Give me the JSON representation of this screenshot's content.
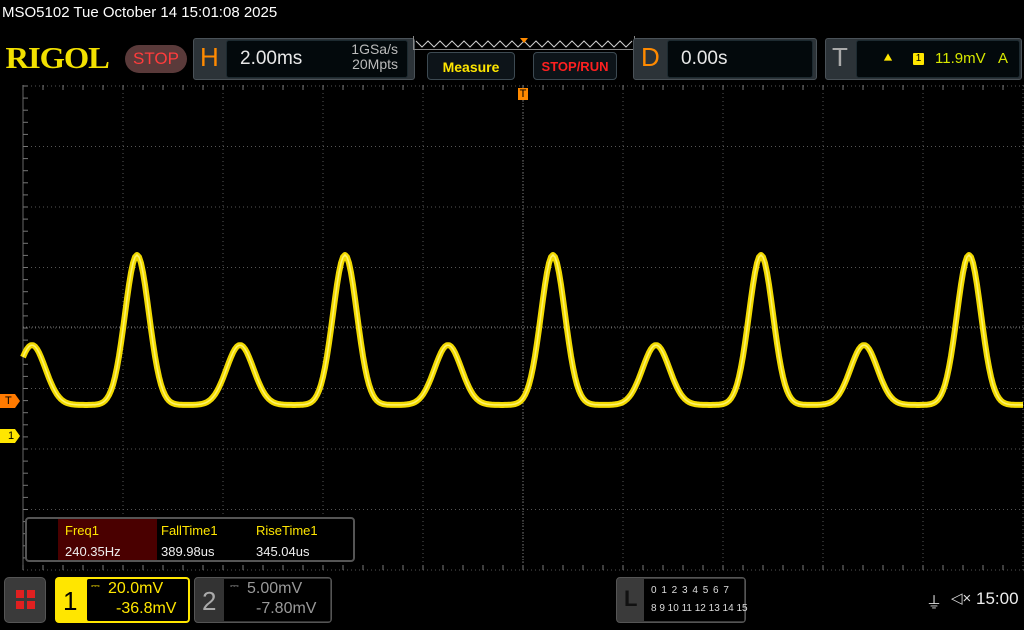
{
  "title": "MSO5102  Tue October 14 15:01:08 2025",
  "logo": "RIGOL",
  "run_state": "STOP",
  "horizontal": {
    "letter": "H",
    "timebase": "2.00ms",
    "sample_rate": "1GSa/s",
    "memory_depth": "20Mpts"
  },
  "buttons": {
    "measure": "Measure",
    "stop_run": "STOP/RUN"
  },
  "delay": {
    "letter": "D",
    "value": "0.00s"
  },
  "trigger": {
    "letter": "T",
    "edge_icon": "rising-edge-icon",
    "source": "1",
    "level": "11.9mV",
    "mode": "A"
  },
  "markers": {
    "trigger": "T",
    "ch1": "1",
    "trigger_position": "T"
  },
  "measurements": [
    {
      "label": "Freq1",
      "value": "240.35Hz"
    },
    {
      "label": "FallTime1",
      "value": "389.98us"
    },
    {
      "label": "RiseTime1",
      "value": "345.04us"
    }
  ],
  "channels": [
    {
      "number": "1",
      "scale": "20.0mV",
      "offset": "-36.8mV",
      "coupling_icon": "dc-coupling-icon",
      "color": "#ffe600",
      "active": true
    },
    {
      "number": "2",
      "scale": "5.00mV",
      "offset": "-7.80mV",
      "coupling_icon": "dc-coupling-icon",
      "color": "#888888",
      "active": false
    }
  ],
  "logic": {
    "letter": "L",
    "row1": "0 1 2 3  4 5 6 7",
    "row2": "8 9 10 11 12 13 14 15"
  },
  "status": {
    "usb_icon": "usb-icon",
    "sound_icon": "speaker-muted-icon",
    "time": "15:00"
  },
  "colors": {
    "trace": "#ffe600",
    "accent": "#ff8a00"
  }
}
